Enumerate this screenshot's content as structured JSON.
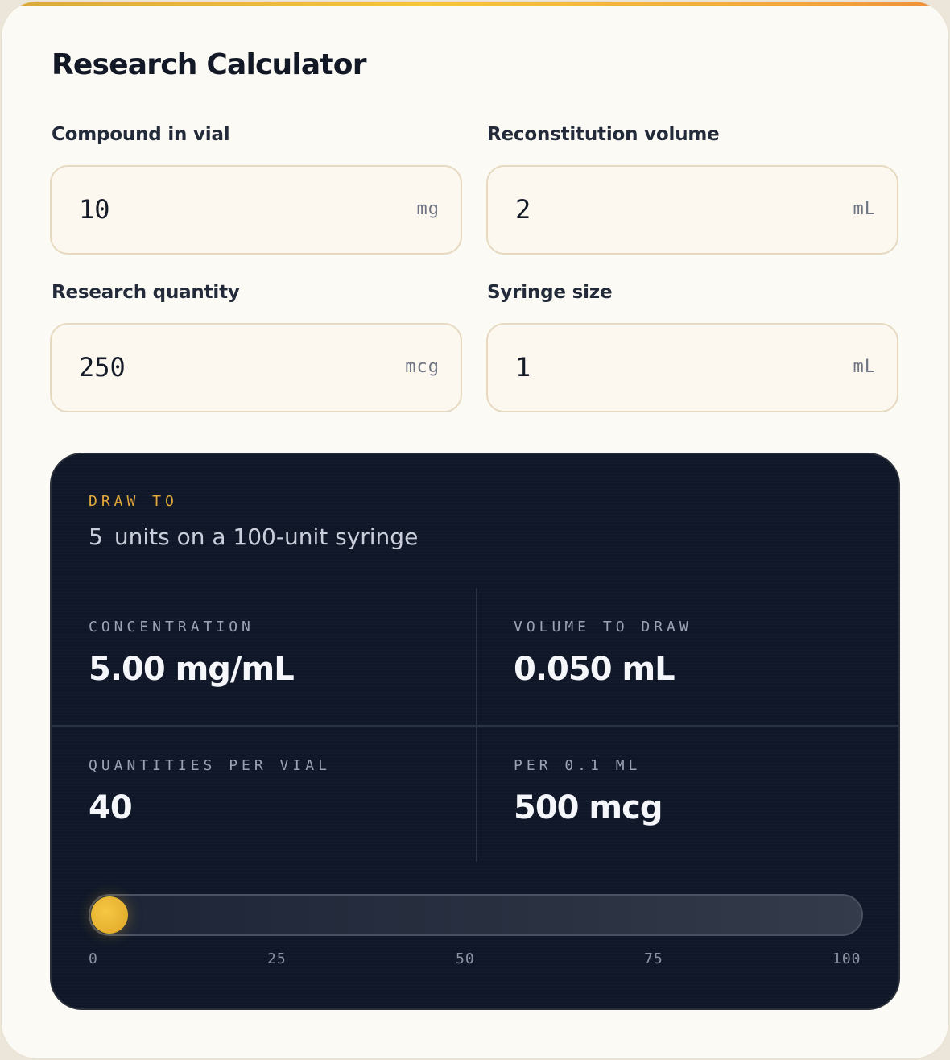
{
  "title": "Research Calculator",
  "fields": [
    {
      "label": "Compound in vial",
      "value": "10",
      "unit": "mg"
    },
    {
      "label": "Reconstitution volume",
      "value": "2",
      "unit": "mL"
    },
    {
      "label": "Research quantity",
      "value": "250",
      "unit": "mcg"
    },
    {
      "label": "Syringe size",
      "value": "1",
      "unit": "mL"
    }
  ],
  "result": {
    "draw_label": "DRAW TO",
    "draw_units": "5",
    "draw_suffix": "units on a 100-unit syringe",
    "metrics": [
      {
        "label": "CONCENTRATION",
        "value": "5.00 mg/mL"
      },
      {
        "label": "VOLUME TO DRAW",
        "value": "0.050 mL"
      },
      {
        "label": "QUANTITIES PER VIAL",
        "value": "40"
      },
      {
        "label": "PER 0.1 ML",
        "value": "500 mcg"
      }
    ],
    "gauge": {
      "value": 5,
      "max": 100,
      "ticks": [
        "0",
        "25",
        "50",
        "75",
        "100"
      ]
    }
  },
  "colors": {
    "accent": "#e3a93a",
    "panel": "#0f1728",
    "card": "#fcfaf5"
  }
}
